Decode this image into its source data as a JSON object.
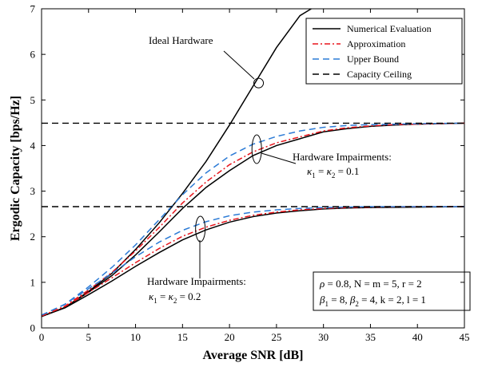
{
  "chart_data": {
    "type": "line",
    "xlabel": "Average SNR [dB]",
    "ylabel": "Ergodic Capacity [bps/Hz]",
    "xlim": [
      0,
      45
    ],
    "ylim": [
      0,
      7
    ],
    "xticks": [
      0,
      5,
      10,
      15,
      20,
      25,
      30,
      35,
      40,
      45
    ],
    "yticks": [
      0,
      1,
      2,
      3,
      4,
      5,
      6,
      7
    ],
    "grid": false,
    "legend_position": "top-right",
    "legend": [
      {
        "label": "Numerical Evaluation",
        "color": "#000000",
        "style": "solid"
      },
      {
        "label": "Approximation",
        "color": "#e8141b",
        "style": "dashdot"
      },
      {
        "label": "Upper Bound",
        "color": "#2c7bd6",
        "style": "dashed"
      },
      {
        "label": "Capacity Ceiling",
        "color": "#000000",
        "style": "dashed"
      }
    ],
    "series": [
      {
        "name": "Ideal Hardware",
        "kind": "numerical",
        "color": "#000000",
        "style": "solid",
        "x": [
          0,
          2.5,
          5,
          7.5,
          10,
          12.5,
          15,
          17.5,
          20,
          22.5,
          25,
          27.5,
          28.7
        ],
        "y": [
          0.25,
          0.45,
          0.8,
          1.2,
          1.72,
          2.3,
          2.95,
          3.65,
          4.45,
          5.3,
          6.15,
          6.85,
          7.0
        ]
      },
      {
        "name": "",
        "kind": "numerical",
        "color": "#000000",
        "style": "solid",
        "x": [
          0,
          2.5,
          5,
          7.5,
          10,
          12.5,
          15,
          17.5,
          20,
          22.5,
          25,
          27.5,
          30,
          32.5,
          35,
          37.5,
          40,
          45
        ],
        "y": [
          0.25,
          0.45,
          0.78,
          1.15,
          1.6,
          2.1,
          2.62,
          3.08,
          3.45,
          3.78,
          4.0,
          4.15,
          4.3,
          4.37,
          4.42,
          4.45,
          4.47,
          4.49
        ]
      },
      {
        "name": "",
        "kind": "approximation",
        "color": "#e8141b",
        "style": "dashdot",
        "x": [
          0,
          2.5,
          5,
          7.5,
          10,
          12.5,
          15,
          17.5,
          20,
          22.5,
          25,
          27.5,
          30,
          32.5,
          35,
          37.5,
          40,
          45
        ],
        "y": [
          0.26,
          0.48,
          0.83,
          1.22,
          1.69,
          2.2,
          2.74,
          3.2,
          3.58,
          3.86,
          4.06,
          4.19,
          4.32,
          4.39,
          4.43,
          4.46,
          4.47,
          4.49
        ]
      },
      {
        "name": "",
        "kind": "upper-bound",
        "color": "#2c7bd6",
        "style": "dashed",
        "x": [
          0,
          2.5,
          5,
          7.5,
          10,
          12.5,
          15,
          17.5,
          20,
          22.5,
          25,
          27.5,
          30,
          32.5,
          35,
          37.5,
          40,
          45
        ],
        "y": [
          0.28,
          0.52,
          0.9,
          1.33,
          1.82,
          2.37,
          2.92,
          3.4,
          3.77,
          4.03,
          4.2,
          4.32,
          4.4,
          4.44,
          4.46,
          4.47,
          4.48,
          4.49
        ]
      },
      {
        "name": "",
        "kind": "numerical",
        "color": "#000000",
        "style": "solid",
        "x": [
          0,
          2.5,
          5,
          7.5,
          10,
          12.5,
          15,
          17.5,
          20,
          22.5,
          25,
          27.5,
          30,
          32.5,
          35,
          40,
          45
        ],
        "y": [
          0.25,
          0.44,
          0.73,
          1.03,
          1.35,
          1.65,
          1.93,
          2.15,
          2.32,
          2.44,
          2.52,
          2.57,
          2.61,
          2.63,
          2.64,
          2.65,
          2.66
        ]
      },
      {
        "name": "",
        "kind": "approximation",
        "color": "#e8141b",
        "style": "dashdot",
        "x": [
          0,
          2.5,
          5,
          7.5,
          10,
          12.5,
          15,
          17.5,
          20,
          22.5,
          25,
          27.5,
          30,
          32.5,
          35,
          40,
          45
        ],
        "y": [
          0.26,
          0.47,
          0.78,
          1.1,
          1.43,
          1.74,
          2.01,
          2.21,
          2.36,
          2.47,
          2.54,
          2.59,
          2.62,
          2.64,
          2.65,
          2.66,
          2.66
        ]
      },
      {
        "name": "",
        "kind": "upper-bound",
        "color": "#2c7bd6",
        "style": "dashed",
        "x": [
          0,
          2.5,
          5,
          7.5,
          10,
          12.5,
          15,
          17.5,
          20,
          22.5,
          25,
          27.5,
          30,
          32.5,
          35,
          40,
          45
        ],
        "y": [
          0.28,
          0.52,
          0.86,
          1.2,
          1.56,
          1.88,
          2.14,
          2.33,
          2.46,
          2.54,
          2.59,
          2.62,
          2.64,
          2.65,
          2.66,
          2.66,
          2.66
        ]
      },
      {
        "name": "",
        "kind": "ceiling",
        "color": "#000000",
        "style": "dashed",
        "x": [
          0,
          45
        ],
        "y": [
          4.49,
          4.49
        ]
      },
      {
        "name": "",
        "kind": "ceiling",
        "color": "#000000",
        "style": "dashed",
        "x": [
          0,
          45
        ],
        "y": [
          2.66,
          2.66
        ]
      }
    ],
    "annotations": {
      "ideal": "Ideal Hardware",
      "hw1_title": "Hardware Impairments:",
      "hw1_eq": "κ 1 = κ 2 = 0.1",
      "hw2_title": "Hardware Impairments:",
      "hw2_eq": "κ 1 = κ 2 = 0.2",
      "params_line1": "ρ = 0.8, N = m = 5, r = 2",
      "params_line2": "β 1 = 8, β 2 = 4, k = 2, l = 1"
    }
  }
}
